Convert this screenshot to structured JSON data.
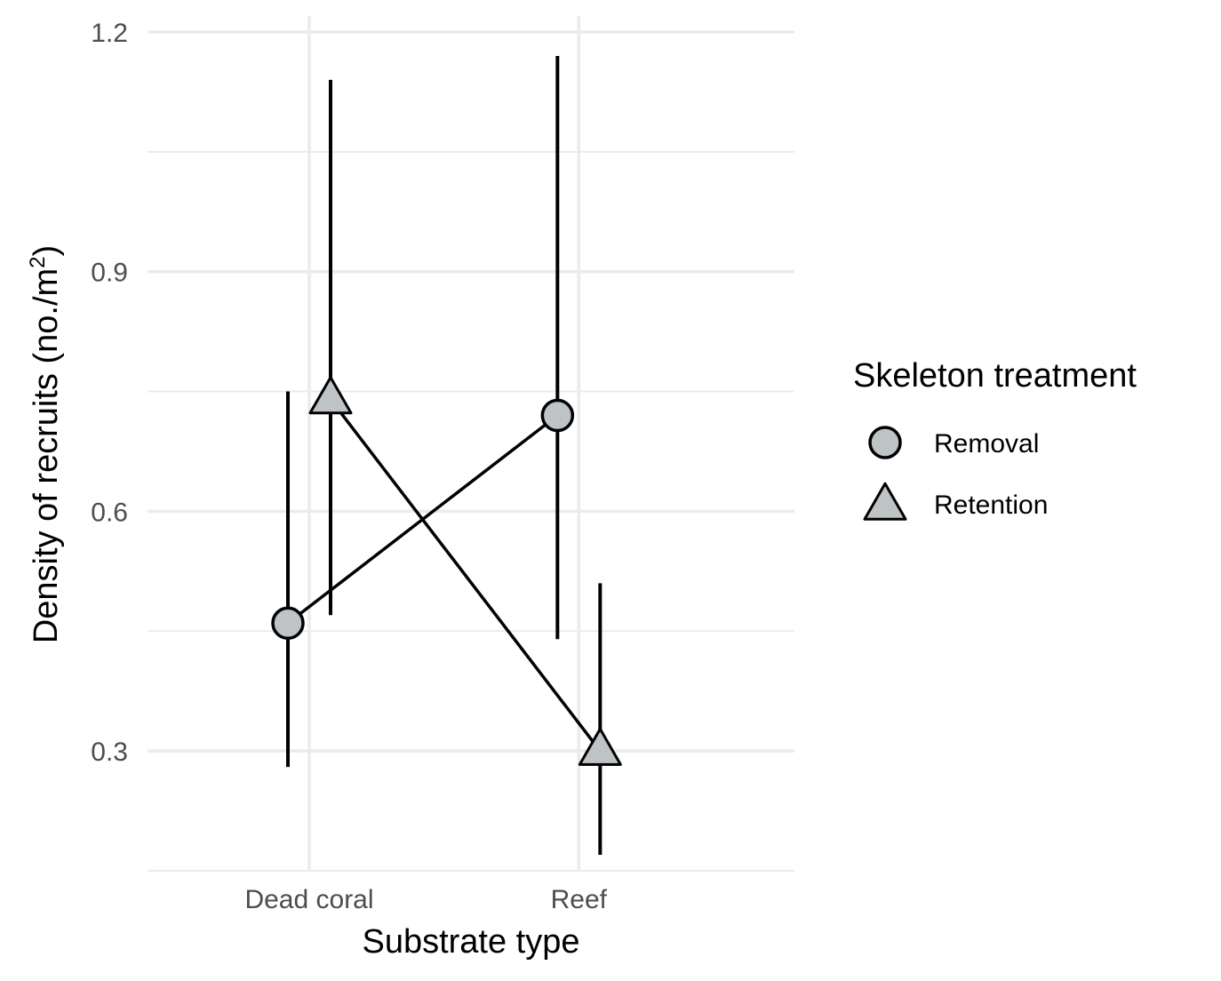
{
  "chart_data": {
    "type": "line",
    "categories": [
      "Dead coral",
      "Reef"
    ],
    "xlabel": "Substrate type",
    "ylabel_prefix": "Density of recruits (no./m",
    "ylabel_sup": "2",
    "ylabel_suffix": ")",
    "ylim": [
      0.15,
      1.22
    ],
    "yticks": [
      0.3,
      0.6,
      0.9,
      1.2
    ],
    "ytick_labels": [
      "0.3",
      "0.6",
      "0.9",
      "1.2"
    ],
    "grid": true,
    "legend": {
      "title": "Skeleton treatment",
      "position": "right"
    },
    "series": [
      {
        "name": "Removal",
        "shape": "circle",
        "values": [
          0.46,
          0.72
        ],
        "lower": [
          0.28,
          0.44
        ],
        "upper": [
          0.75,
          1.17
        ]
      },
      {
        "name": "Retention",
        "shape": "triangle",
        "values": [
          0.74,
          0.3
        ],
        "lower": [
          0.47,
          0.17
        ],
        "upper": [
          1.14,
          0.51
        ]
      }
    ],
    "colors": {
      "point_fill": "#bec3c5",
      "point_stroke": "#000000",
      "line": "#000000",
      "grid": "#ebebeb"
    }
  }
}
